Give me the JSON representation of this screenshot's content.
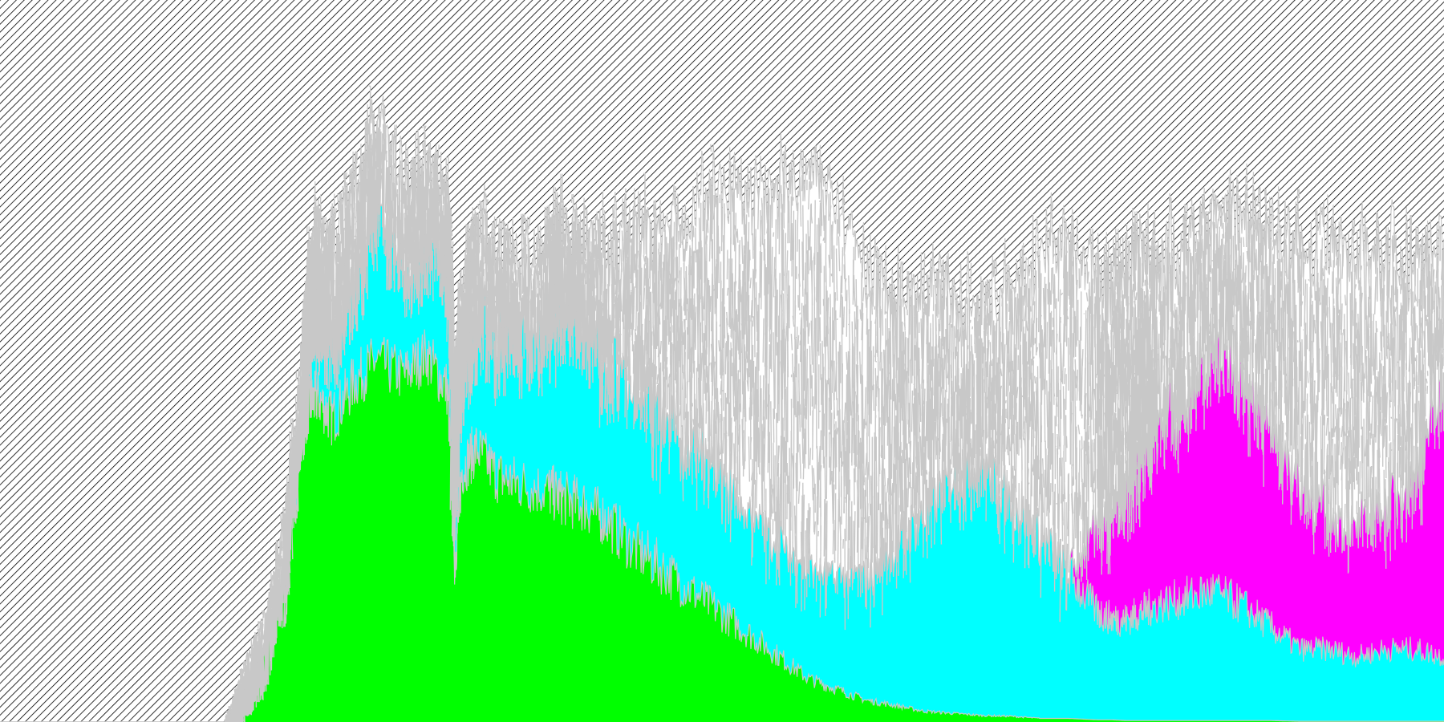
{
  "chart_data": {
    "type": "area",
    "stacked": true,
    "grid": false,
    "legend": "none",
    "xlim": [
      0,
      100
    ],
    "ylim": [
      0,
      100
    ],
    "colors": {
      "background_hatch": "#000000",
      "gridlines": "#c8c8c8",
      "green_band": "#00ff00",
      "cyan_band": "#00ffff",
      "magenta_band": "#ff00ff",
      "white_band": "#ffffff"
    },
    "x": [
      0,
      15.6,
      17,
      18.4,
      19.8,
      21,
      21.4,
      22,
      23,
      24.5,
      26,
      28,
      29.5,
      31,
      31.5,
      32,
      33,
      34.5,
      36,
      38,
      39,
      40.5,
      42,
      44,
      46,
      48,
      50,
      52,
      54,
      56,
      58,
      60,
      62,
      64,
      66,
      68,
      70,
      72,
      74,
      76,
      77,
      78,
      79,
      80,
      82,
      84,
      86,
      88,
      90,
      92,
      94,
      96,
      98,
      100
    ],
    "series": [
      {
        "values": [
          0,
          0,
          5,
          10,
          22,
          40,
          44,
          45,
          42,
          47,
          50,
          48,
          51,
          46,
          22,
          35,
          38,
          34,
          33,
          32,
          31,
          30,
          28,
          24,
          21,
          18,
          15,
          12,
          9,
          6,
          4.5,
          3,
          2.3,
          1.5,
          1.2,
          0.9,
          0.8,
          0.5,
          0.5,
          0.3,
          0.3,
          0.2,
          0.2,
          0.2,
          0.2,
          0.2,
          0.2,
          0.2,
          0.1,
          0.1,
          0.1,
          0.1,
          0.1,
          0.1
        ]
      },
      {
        "values": [
          0,
          0,
          0,
          0,
          0,
          5,
          10,
          13,
          11,
          15,
          20,
          14,
          17,
          18,
          6,
          15,
          18,
          20,
          22,
          25,
          27,
          25,
          22,
          22,
          21,
          20,
          18,
          17,
          16,
          15,
          15.5,
          17,
          22,
          27,
          33,
          35,
          30,
          25,
          20,
          15,
          14,
          14,
          15,
          16,
          17,
          18,
          16,
          13,
          10,
          10,
          9,
          10,
          10,
          9
        ]
      },
      {
        "values": [
          0,
          0,
          0,
          0,
          0,
          0,
          0,
          0,
          0,
          0,
          0,
          0,
          0,
          0,
          0,
          0,
          0,
          0,
          0,
          0,
          0,
          0,
          0,
          0,
          0,
          0,
          0,
          0,
          0,
          0,
          0,
          0,
          0,
          0,
          0,
          0,
          0,
          0,
          0,
          12,
          15,
          18,
          22,
          25,
          27,
          33,
          31,
          28,
          22,
          18,
          18,
          20,
          24,
          38
        ]
      },
      {
        "values": [
          0,
          0,
          3,
          5,
          6,
          8,
          10,
          11,
          13,
          14,
          12,
          12,
          9,
          10,
          22,
          12,
          13,
          11,
          10,
          10,
          9,
          12,
          16,
          21,
          27,
          33,
          40,
          45,
          50,
          55,
          53,
          43,
          35,
          30,
          25,
          23,
          30,
          40,
          48,
          35,
          32,
          30,
          28,
          23,
          22,
          19,
          23,
          27,
          34,
          38,
          38,
          35,
          31,
          18
        ]
      }
    ]
  }
}
